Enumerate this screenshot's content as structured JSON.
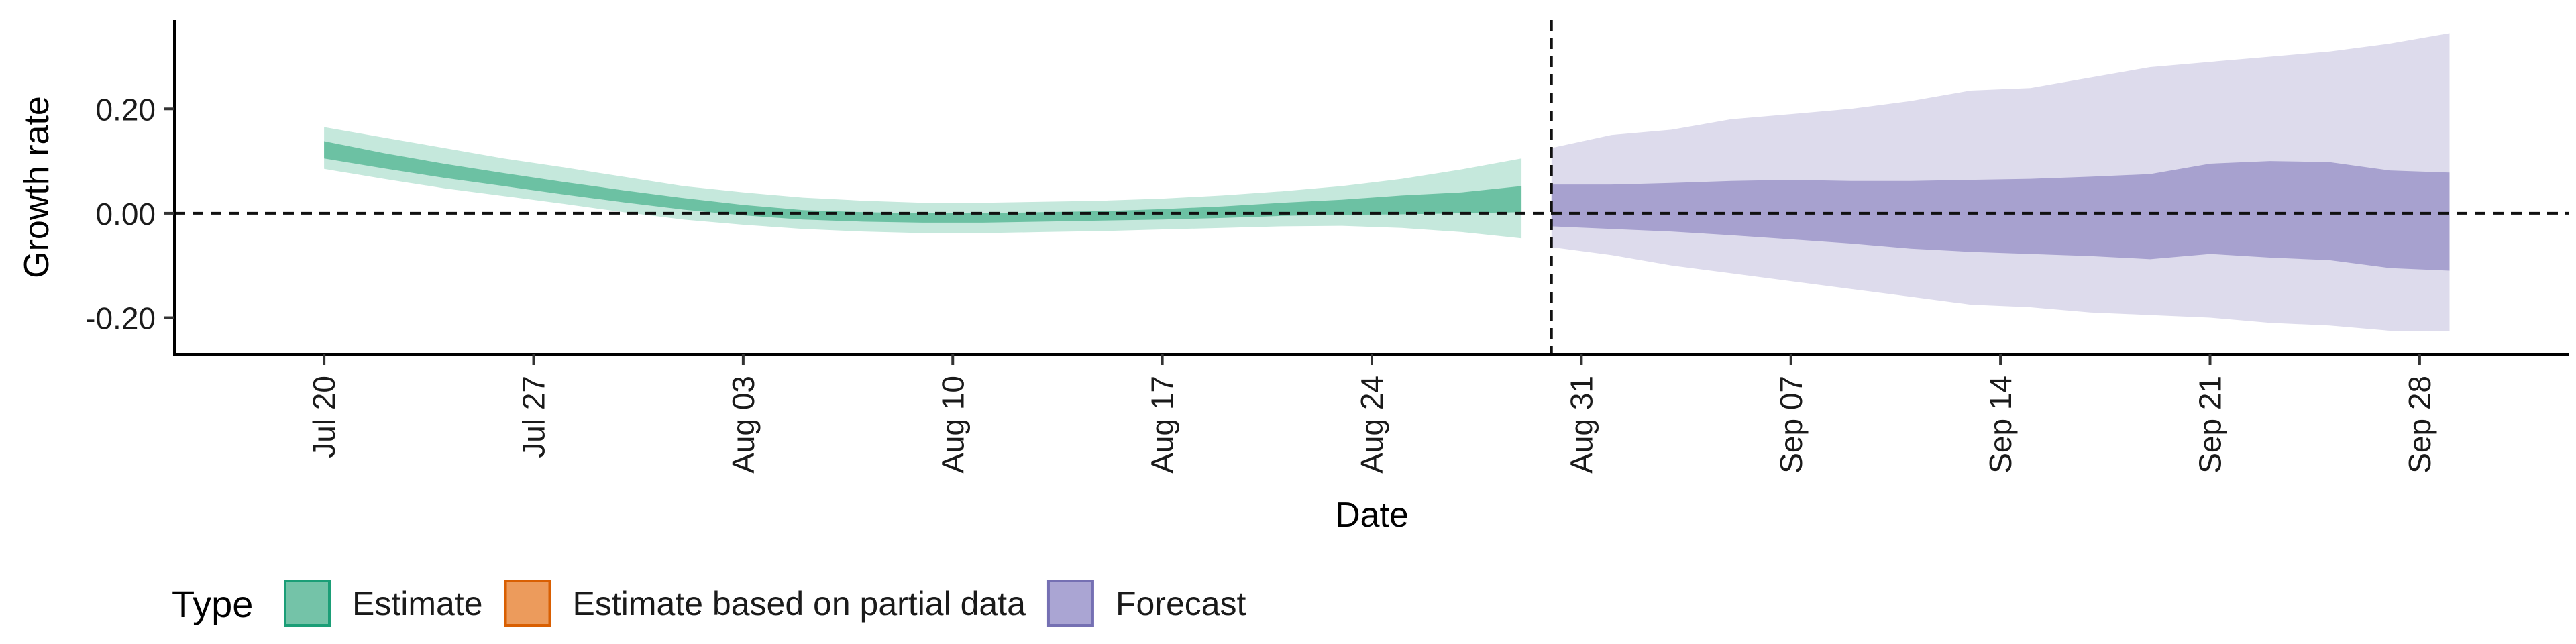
{
  "chart_data": {
    "type": "area",
    "xlabel": "Date",
    "ylabel": "Growth rate",
    "ylim": [
      -0.27,
      0.37
    ],
    "xlim_dates": [
      "2021-07-15",
      "2021-10-03"
    ],
    "x_ticks": [
      {
        "date": "2021-07-20",
        "label": "Jul 20"
      },
      {
        "date": "2021-07-27",
        "label": "Jul 27"
      },
      {
        "date": "2021-08-03",
        "label": "Aug 03"
      },
      {
        "date": "2021-08-10",
        "label": "Aug 10"
      },
      {
        "date": "2021-08-17",
        "label": "Aug 17"
      },
      {
        "date": "2021-08-24",
        "label": "Aug 24"
      },
      {
        "date": "2021-08-31",
        "label": "Aug 31"
      },
      {
        "date": "2021-09-07",
        "label": "Sep 07"
      },
      {
        "date": "2021-09-14",
        "label": "Sep 14"
      },
      {
        "date": "2021-09-21",
        "label": "Sep 21"
      },
      {
        "date": "2021-09-28",
        "label": "Sep 28"
      }
    ],
    "y_ticks": [
      {
        "value": 0.2,
        "label": "0.20"
      },
      {
        "value": 0.0,
        "label": "0.00"
      },
      {
        "value": -0.2,
        "label": "-0.20"
      }
    ],
    "reference_lines": {
      "horizontal_y": 0.0,
      "vertical_date": "2021-08-30"
    },
    "legend": {
      "title": "Type",
      "position": "bottom",
      "items": [
        {
          "label": "Estimate",
          "fill": "#74c3a8",
          "stroke": "#1b9e77"
        },
        {
          "label": "Estimate based on partial data",
          "fill": "#ec9b5c",
          "stroke": "#d95f02"
        },
        {
          "label": "Forecast",
          "fill": "#aaa5d3",
          "stroke": "#7570b3"
        }
      ]
    },
    "series": [
      {
        "name": "Estimate",
        "inner_color": "#6cc1a3",
        "outer_color": "#c5e8dc",
        "dates": [
          "2021-07-20",
          "2021-07-22",
          "2021-07-24",
          "2021-07-26",
          "2021-07-28",
          "2021-07-30",
          "2021-08-01",
          "2021-08-03",
          "2021-08-05",
          "2021-08-07",
          "2021-08-09",
          "2021-08-11",
          "2021-08-13",
          "2021-08-15",
          "2021-08-17",
          "2021-08-19",
          "2021-08-21",
          "2021-08-23",
          "2021-08-25",
          "2021-08-27",
          "2021-08-29"
        ],
        "outer_upper": [
          0.165,
          0.145,
          0.125,
          0.105,
          0.088,
          0.07,
          0.052,
          0.04,
          0.03,
          0.024,
          0.02,
          0.02,
          0.022,
          0.024,
          0.028,
          0.034,
          0.042,
          0.052,
          0.066,
          0.084,
          0.105
        ],
        "inner_upper": [
          0.138,
          0.115,
          0.095,
          0.077,
          0.06,
          0.044,
          0.029,
          0.016,
          0.006,
          0.002,
          0.0,
          0.0,
          0.002,
          0.004,
          0.008,
          0.013,
          0.02,
          0.026,
          0.034,
          0.04,
          0.052
        ],
        "inner_lower": [
          0.105,
          0.086,
          0.068,
          0.052,
          0.036,
          0.021,
          0.007,
          -0.004,
          -0.012,
          -0.016,
          -0.018,
          -0.018,
          -0.016,
          -0.014,
          -0.012,
          -0.009,
          -0.005,
          -0.003,
          -0.002,
          0.0,
          0.002
        ],
        "outer_lower": [
          0.085,
          0.066,
          0.048,
          0.033,
          0.018,
          0.002,
          -0.012,
          -0.022,
          -0.03,
          -0.035,
          -0.038,
          -0.038,
          -0.036,
          -0.034,
          -0.031,
          -0.028,
          -0.025,
          -0.024,
          -0.028,
          -0.036,
          -0.048
        ]
      },
      {
        "name": "Forecast",
        "inner_color": "#a7a1cf",
        "outer_color": "#dddbec",
        "dates": [
          "2021-08-30",
          "2021-09-01",
          "2021-09-03",
          "2021-09-05",
          "2021-09-07",
          "2021-09-09",
          "2021-09-11",
          "2021-09-13",
          "2021-09-15",
          "2021-09-17",
          "2021-09-19",
          "2021-09-21",
          "2021-09-23",
          "2021-09-25",
          "2021-09-27",
          "2021-09-29"
        ],
        "outer_upper": [
          0.125,
          0.15,
          0.16,
          0.18,
          0.19,
          0.2,
          0.215,
          0.235,
          0.24,
          0.26,
          0.28,
          0.29,
          0.3,
          0.31,
          0.325,
          0.345
        ],
        "inner_upper": [
          0.055,
          0.055,
          0.058,
          0.062,
          0.064,
          0.062,
          0.062,
          0.064,
          0.066,
          0.07,
          0.075,
          0.095,
          0.1,
          0.098,
          0.082,
          0.078
        ],
        "inner_lower": [
          -0.025,
          -0.03,
          -0.035,
          -0.042,
          -0.05,
          -0.058,
          -0.068,
          -0.074,
          -0.078,
          -0.082,
          -0.088,
          -0.078,
          -0.085,
          -0.09,
          -0.105,
          -0.11
        ],
        "outer_lower": [
          -0.065,
          -0.08,
          -0.1,
          -0.115,
          -0.13,
          -0.145,
          -0.16,
          -0.175,
          -0.18,
          -0.19,
          -0.195,
          -0.2,
          -0.21,
          -0.215,
          -0.225,
          -0.225
        ]
      }
    ]
  }
}
